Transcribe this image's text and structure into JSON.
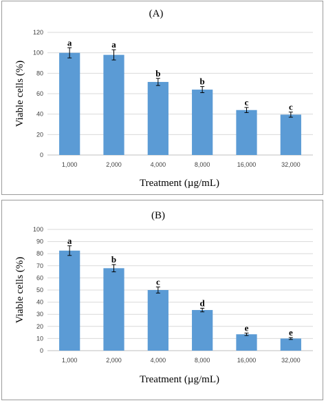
{
  "chart_data": [
    {
      "type": "bar",
      "title": "(A)",
      "xlabel": "Treatment  (µg/mL)",
      "ylabel": "Viable cells (%)",
      "categories": [
        "1,000",
        "2,000",
        "4,000",
        "8,000",
        "16,000",
        "32,000"
      ],
      "values": [
        100,
        98,
        71.5,
        64,
        44,
        39.5
      ],
      "errors": [
        5,
        5,
        3.5,
        3,
        2.5,
        2.5
      ],
      "significance": [
        "a",
        "a",
        "b",
        "b",
        "c",
        "c"
      ],
      "ylim": [
        0,
        120
      ],
      "yticks": [
        0,
        20,
        40,
        60,
        80,
        100,
        120
      ],
      "color": "#5B9BD5"
    },
    {
      "type": "bar",
      "title": "(B)",
      "xlabel": "Treatment  (µg/mL)",
      "ylabel": "Viable cells (%)",
      "categories": [
        "1,000",
        "2,000",
        "4,000",
        "8,000",
        "16,000",
        "32,000"
      ],
      "values": [
        82.5,
        68,
        50,
        33.5,
        13.5,
        10
      ],
      "errors": [
        4,
        3,
        2.5,
        1.5,
        1,
        0.8
      ],
      "significance": [
        "a",
        "b",
        "c",
        "d",
        "e",
        "e"
      ],
      "ylim": [
        0,
        100
      ],
      "yticks": [
        0,
        10,
        20,
        30,
        40,
        50,
        60,
        70,
        80,
        90,
        100
      ],
      "color": "#5B9BD5"
    }
  ]
}
